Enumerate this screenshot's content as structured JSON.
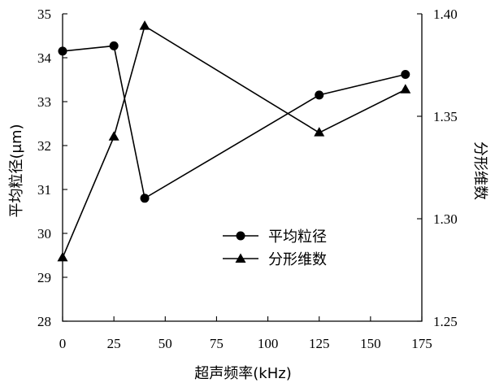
{
  "chart_data": {
    "type": "line",
    "xlabel": "超声频率(kHz)",
    "ylabel_left": "平均粒径(μm)",
    "ylabel_right": "分形维数",
    "xlim": [
      0,
      175
    ],
    "xticks": [
      0,
      25,
      50,
      75,
      100,
      125,
      150,
      175
    ],
    "ylim_left": [
      28,
      35
    ],
    "yticks_left": [
      28,
      29,
      30,
      31,
      32,
      33,
      34,
      35
    ],
    "ylim_right": [
      1.25,
      1.4
    ],
    "yticks_right": [
      "1.25",
      "1.30",
      "1.35",
      "1.40"
    ],
    "legend_position": "center-right",
    "series": [
      {
        "name": "平均粒径",
        "axis": "left",
        "marker": "circle",
        "x": [
          0,
          25,
          40,
          125,
          167
        ],
        "y": [
          34.15,
          34.27,
          30.8,
          33.15,
          33.62
        ]
      },
      {
        "name": "分形维数",
        "axis": "right",
        "marker": "triangle",
        "x": [
          0,
          25,
          40,
          125,
          167
        ],
        "y": [
          1.281,
          1.34,
          1.394,
          1.342,
          1.363
        ]
      }
    ]
  }
}
